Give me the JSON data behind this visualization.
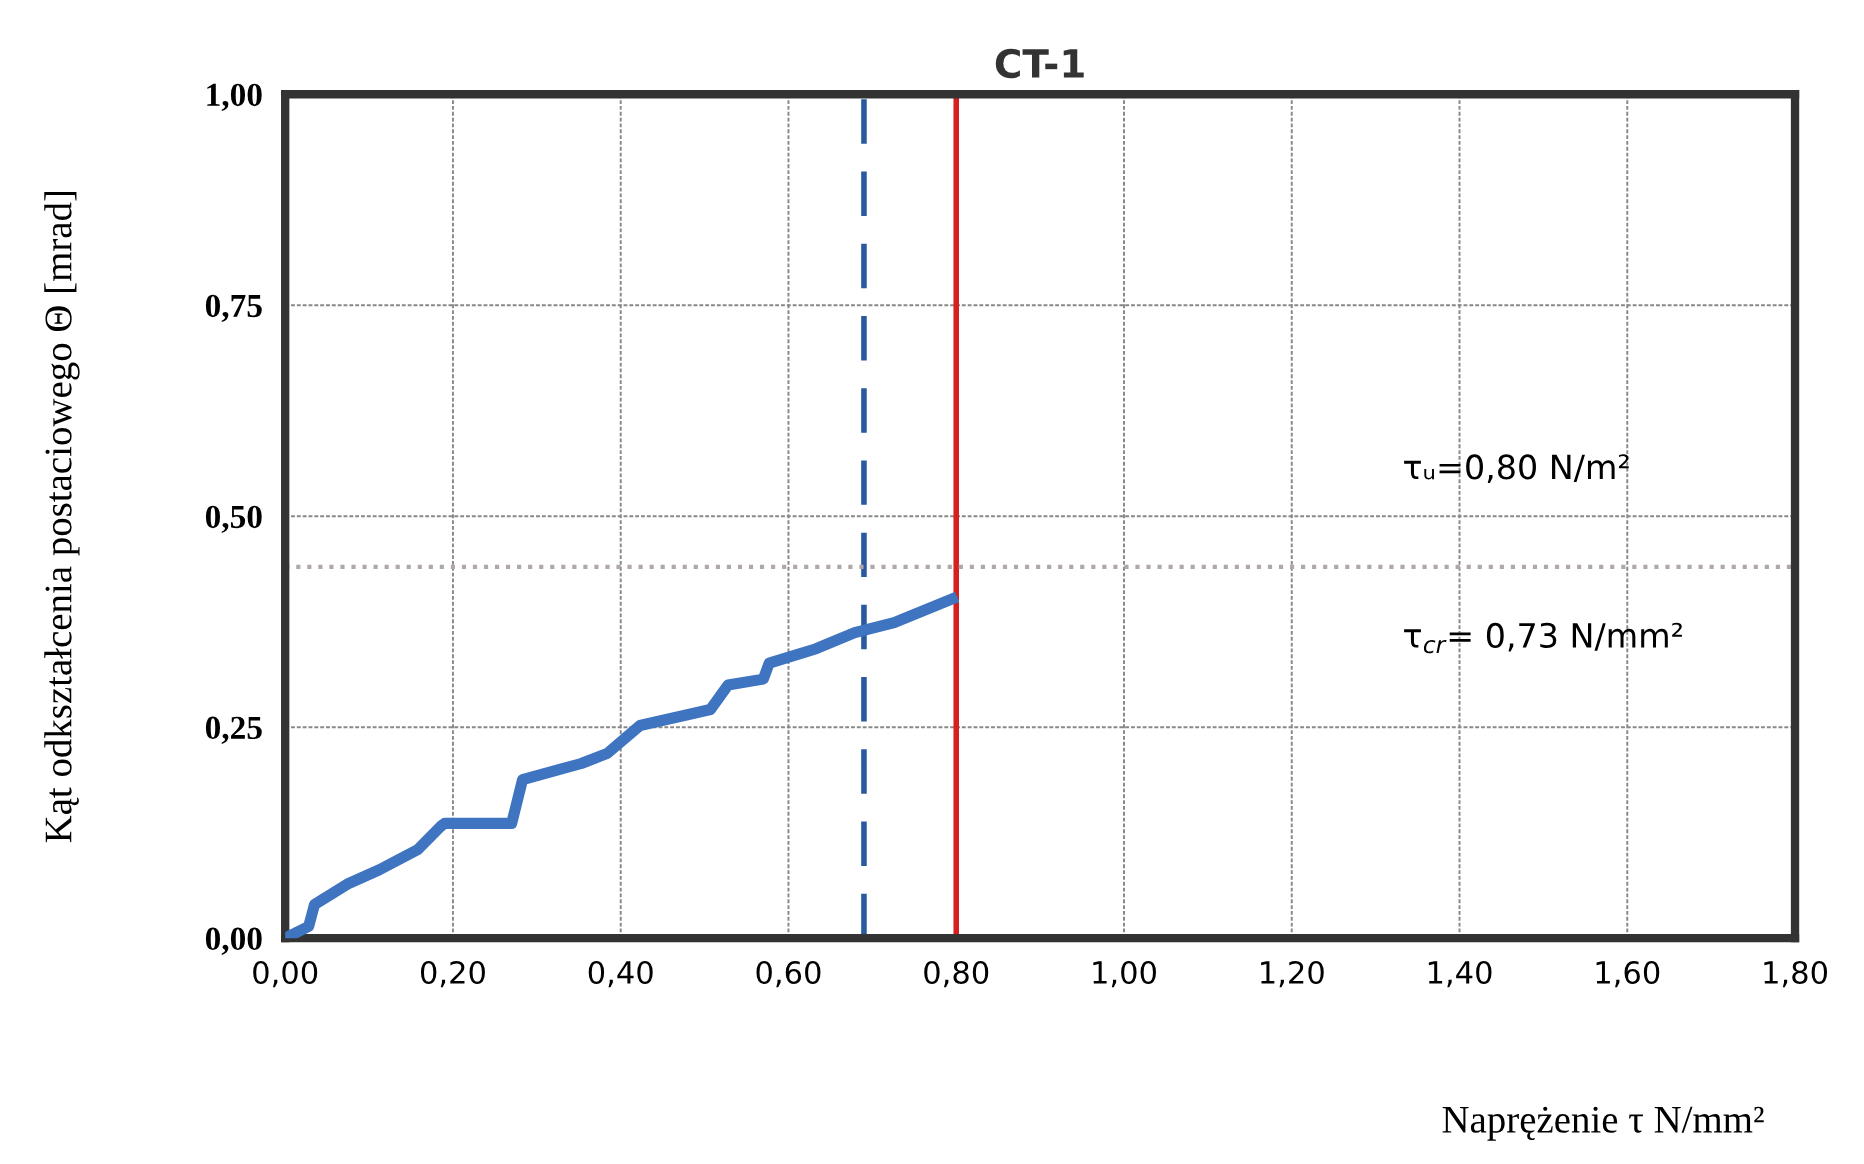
{
  "chart_data": {
    "type": "line",
    "title": "CT-1",
    "xlabel": "Naprężenie τ N/mm²",
    "ylabel": "Kąt odkształcenia postaciowego Θ [mrad]",
    "x": [
      0,
      0.028,
      0.035,
      0.074,
      0.112,
      0.158,
      0.186,
      0.19,
      0.27,
      0.283,
      0.353,
      0.384,
      0.423,
      0.507,
      0.528,
      0.57,
      0.577,
      0.633,
      0.679,
      0.726,
      0.795
    ],
    "series": [
      {
        "color": "#3f74c0",
        "values": [
          0,
          0.014,
          0.04,
          0.064,
          0.081,
          0.105,
          0.133,
          0.136,
          0.136,
          0.188,
          0.207,
          0.219,
          0.252,
          0.271,
          0.3,
          0.307,
          0.326,
          0.343,
          0.362,
          0.374,
          0.402
        ]
      }
    ],
    "xlim": [
      0,
      1.8
    ],
    "ylim": [
      0,
      1
    ],
    "xticks": [
      {
        "value": 0,
        "label": "0,00"
      },
      {
        "value": 0.2,
        "label": "0,20"
      },
      {
        "value": 0.4,
        "label": "0,40"
      },
      {
        "value": 0.6,
        "label": "0,60"
      },
      {
        "value": 0.8,
        "label": "0,80"
      },
      {
        "value": 1.0,
        "label": "1,00"
      },
      {
        "value": 1.2,
        "label": "1,20"
      },
      {
        "value": 1.4,
        "label": "1,40"
      },
      {
        "value": 1.6,
        "label": "1,60"
      },
      {
        "value": 1.8,
        "label": "1,80"
      }
    ],
    "yticks": [
      {
        "value": 0,
        "label": "0,00"
      },
      {
        "value": 0.25,
        "label": "0,25"
      },
      {
        "value": 0.5,
        "label": "0,50"
      },
      {
        "value": 0.75,
        "label": "0,75"
      },
      {
        "value": 1.0,
        "label": "1,00"
      }
    ],
    "ref_lines": [
      {
        "axis": "x",
        "value": 0.69,
        "color": "#2a5a9e",
        "line_style": "dashed"
      },
      {
        "axis": "x",
        "value": 0.8,
        "color": "#d62020",
        "line_style": "solid"
      },
      {
        "axis": "y",
        "value": 0.44,
        "color": "#b0a8a8",
        "line_style": "dotted"
      }
    ],
    "annotations": [
      "τᵤ=0,80 N/m²",
      "τ$_{cr}$= 0,73 N/mm²"
    ],
    "grid": true,
    "marker": "none",
    "line_style": "solid"
  }
}
